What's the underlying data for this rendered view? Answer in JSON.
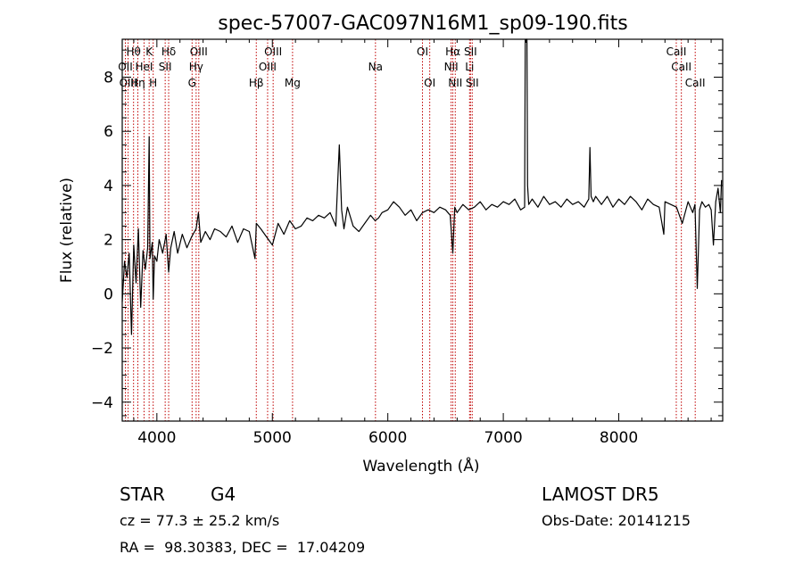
{
  "chart_data": {
    "type": "line",
    "title": "spec-57007-GAC097N16M1_sp09-190.fits",
    "xlabel": "Wavelength (Å)",
    "ylabel": "Flux (relative)",
    "xlim": [
      3700,
      8900
    ],
    "ylim": [
      -4.7,
      9.4
    ],
    "x_ticks": [
      4000,
      5000,
      6000,
      7000,
      8000
    ],
    "y_ticks": [
      -4,
      -2,
      0,
      2,
      4,
      6,
      8
    ],
    "grid": false,
    "series": [
      {
        "x": [
          3700,
          3720,
          3740,
          3760,
          3780,
          3800,
          3820,
          3840,
          3860,
          3880,
          3900,
          3920,
          3933,
          3940,
          3960,
          3968,
          3980,
          4000,
          4020,
          4050,
          4080,
          4102,
          4120,
          4150,
          4180,
          4220,
          4260,
          4300,
          4340,
          4360,
          4380,
          4420,
          4460,
          4500,
          4550,
          4600,
          4650,
          4700,
          4750,
          4800,
          4850,
          4861,
          4900,
          4950,
          5000,
          5050,
          5100,
          5150,
          5200,
          5250,
          5300,
          5350,
          5400,
          5450,
          5500,
          5550,
          5580,
          5600,
          5620,
          5650,
          5700,
          5750,
          5800,
          5850,
          5890,
          5920,
          5950,
          6000,
          6050,
          6100,
          6150,
          6200,
          6250,
          6300,
          6350,
          6400,
          6450,
          6500,
          6540,
          6563,
          6580,
          6600,
          6650,
          6700,
          6750,
          6800,
          6850,
          6900,
          6950,
          7000,
          7050,
          7100,
          7150,
          7185,
          7190,
          7195,
          7200,
          7205,
          7210,
          7220,
          7250,
          7300,
          7350,
          7400,
          7450,
          7500,
          7550,
          7600,
          7650,
          7700,
          7740,
          7750,
          7760,
          7780,
          7800,
          7850,
          7900,
          7950,
          8000,
          8050,
          8100,
          8150,
          8200,
          8250,
          8300,
          8350,
          8390,
          8400,
          8450,
          8500,
          8550,
          8600,
          8620,
          8640,
          8660,
          8680,
          8700,
          8720,
          8750,
          8780,
          8800,
          8820,
          8840,
          8860,
          8880,
          8890
        ],
        "y": [
          -0.3,
          1.2,
          0.6,
          1.5,
          -1.5,
          1.8,
          0.4,
          2.4,
          -0.5,
          1.6,
          0.9,
          1.7,
          5.8,
          1.3,
          1.9,
          -0.2,
          1.4,
          1.2,
          2.0,
          1.5,
          2.2,
          0.8,
          1.7,
          2.3,
          1.5,
          2.2,
          1.7,
          2.1,
          2.4,
          3.0,
          1.9,
          2.3,
          2.0,
          2.4,
          2.3,
          2.1,
          2.5,
          1.9,
          2.4,
          2.3,
          1.3,
          2.6,
          2.4,
          2.1,
          1.8,
          2.6,
          2.2,
          2.7,
          2.4,
          2.5,
          2.8,
          2.7,
          2.9,
          2.8,
          3.0,
          2.5,
          5.5,
          3.1,
          2.4,
          3.2,
          2.5,
          2.3,
          2.6,
          2.9,
          2.7,
          2.8,
          3.0,
          3.1,
          3.4,
          3.2,
          2.9,
          3.1,
          2.7,
          3.0,
          3.1,
          3.0,
          3.2,
          3.1,
          2.9,
          1.5,
          3.2,
          3.0,
          3.3,
          3.1,
          3.2,
          3.4,
          3.1,
          3.3,
          3.2,
          3.4,
          3.3,
          3.5,
          3.1,
          3.2,
          9.4,
          9.3,
          9.4,
          9.4,
          4.0,
          3.3,
          3.5,
          3.2,
          3.6,
          3.3,
          3.4,
          3.2,
          3.5,
          3.3,
          3.4,
          3.2,
          3.5,
          5.4,
          3.6,
          3.4,
          3.6,
          3.3,
          3.6,
          3.2,
          3.5,
          3.3,
          3.6,
          3.4,
          3.1,
          3.5,
          3.3,
          3.2,
          2.2,
          3.4,
          3.3,
          3.2,
          2.6,
          3.4,
          3.2,
          3.0,
          3.3,
          0.2,
          3.1,
          3.4,
          3.2,
          3.3,
          3.1,
          1.8,
          3.4,
          3.9,
          3.0,
          4.2
        ]
      }
    ],
    "lines": [
      {
        "name": "Hθ",
        "x": 3798,
        "row": 1
      },
      {
        "name": "K",
        "x": 3933,
        "row": 1
      },
      {
        "name": "Hδ",
        "x": 4102,
        "row": 1
      },
      {
        "name": "OIII",
        "x": 4363,
        "row": 1
      },
      {
        "name": "OIII",
        "x": 5007,
        "row": 1
      },
      {
        "name": "OI",
        "x": 6300,
        "row": 1
      },
      {
        "name": "Hα",
        "x": 6563,
        "row": 1
      },
      {
        "name": "SII",
        "x": 6716,
        "row": 1
      },
      {
        "name": "CaII",
        "x": 8498,
        "row": 1
      },
      {
        "name": "OII",
        "x": 3727,
        "row": 2
      },
      {
        "name": "HeI",
        "x": 3889,
        "row": 2
      },
      {
        "name": "SII",
        "x": 4072,
        "row": 2
      },
      {
        "name": "Hγ",
        "x": 4340,
        "row": 2
      },
      {
        "name": "OIII",
        "x": 4959,
        "row": 2
      },
      {
        "name": "NII",
        "x": 6548,
        "row": 2
      },
      {
        "name": "Li",
        "x": 6708,
        "row": 2
      },
      {
        "name": "CaII",
        "x": 8542,
        "row": 2
      },
      {
        "name": "OIII",
        "x": 3751,
        "row": 3
      },
      {
        "name": "Hη",
        "x": 3835,
        "row": 3
      },
      {
        "name": "H",
        "x": 3968,
        "row": 3
      },
      {
        "name": "G",
        "x": 4305,
        "row": 3
      },
      {
        "name": "Hβ",
        "x": 4861,
        "row": 3
      },
      {
        "name": "Mg",
        "x": 5175,
        "row": 3
      },
      {
        "name": "Na",
        "x": 5893,
        "row": 2
      },
      {
        "name": "OI",
        "x": 6363,
        "row": 3
      },
      {
        "name": "NII",
        "x": 6584,
        "row": 3
      },
      {
        "name": "SII",
        "x": 6731,
        "row": 3
      },
      {
        "name": "CaII",
        "x": 8662,
        "row": 3
      }
    ]
  },
  "info": {
    "object_class": "STAR",
    "subclass": "G4",
    "cz": "cz = 77.3 ± 25.2 km/s",
    "coords": "RA =  98.30383, DEC =  17.04209",
    "survey": "LAMOST DR5",
    "obs_date": "Obs-Date: 20141215"
  },
  "colors": {
    "spectrum": "#000000",
    "line_markers": "#c00000"
  }
}
